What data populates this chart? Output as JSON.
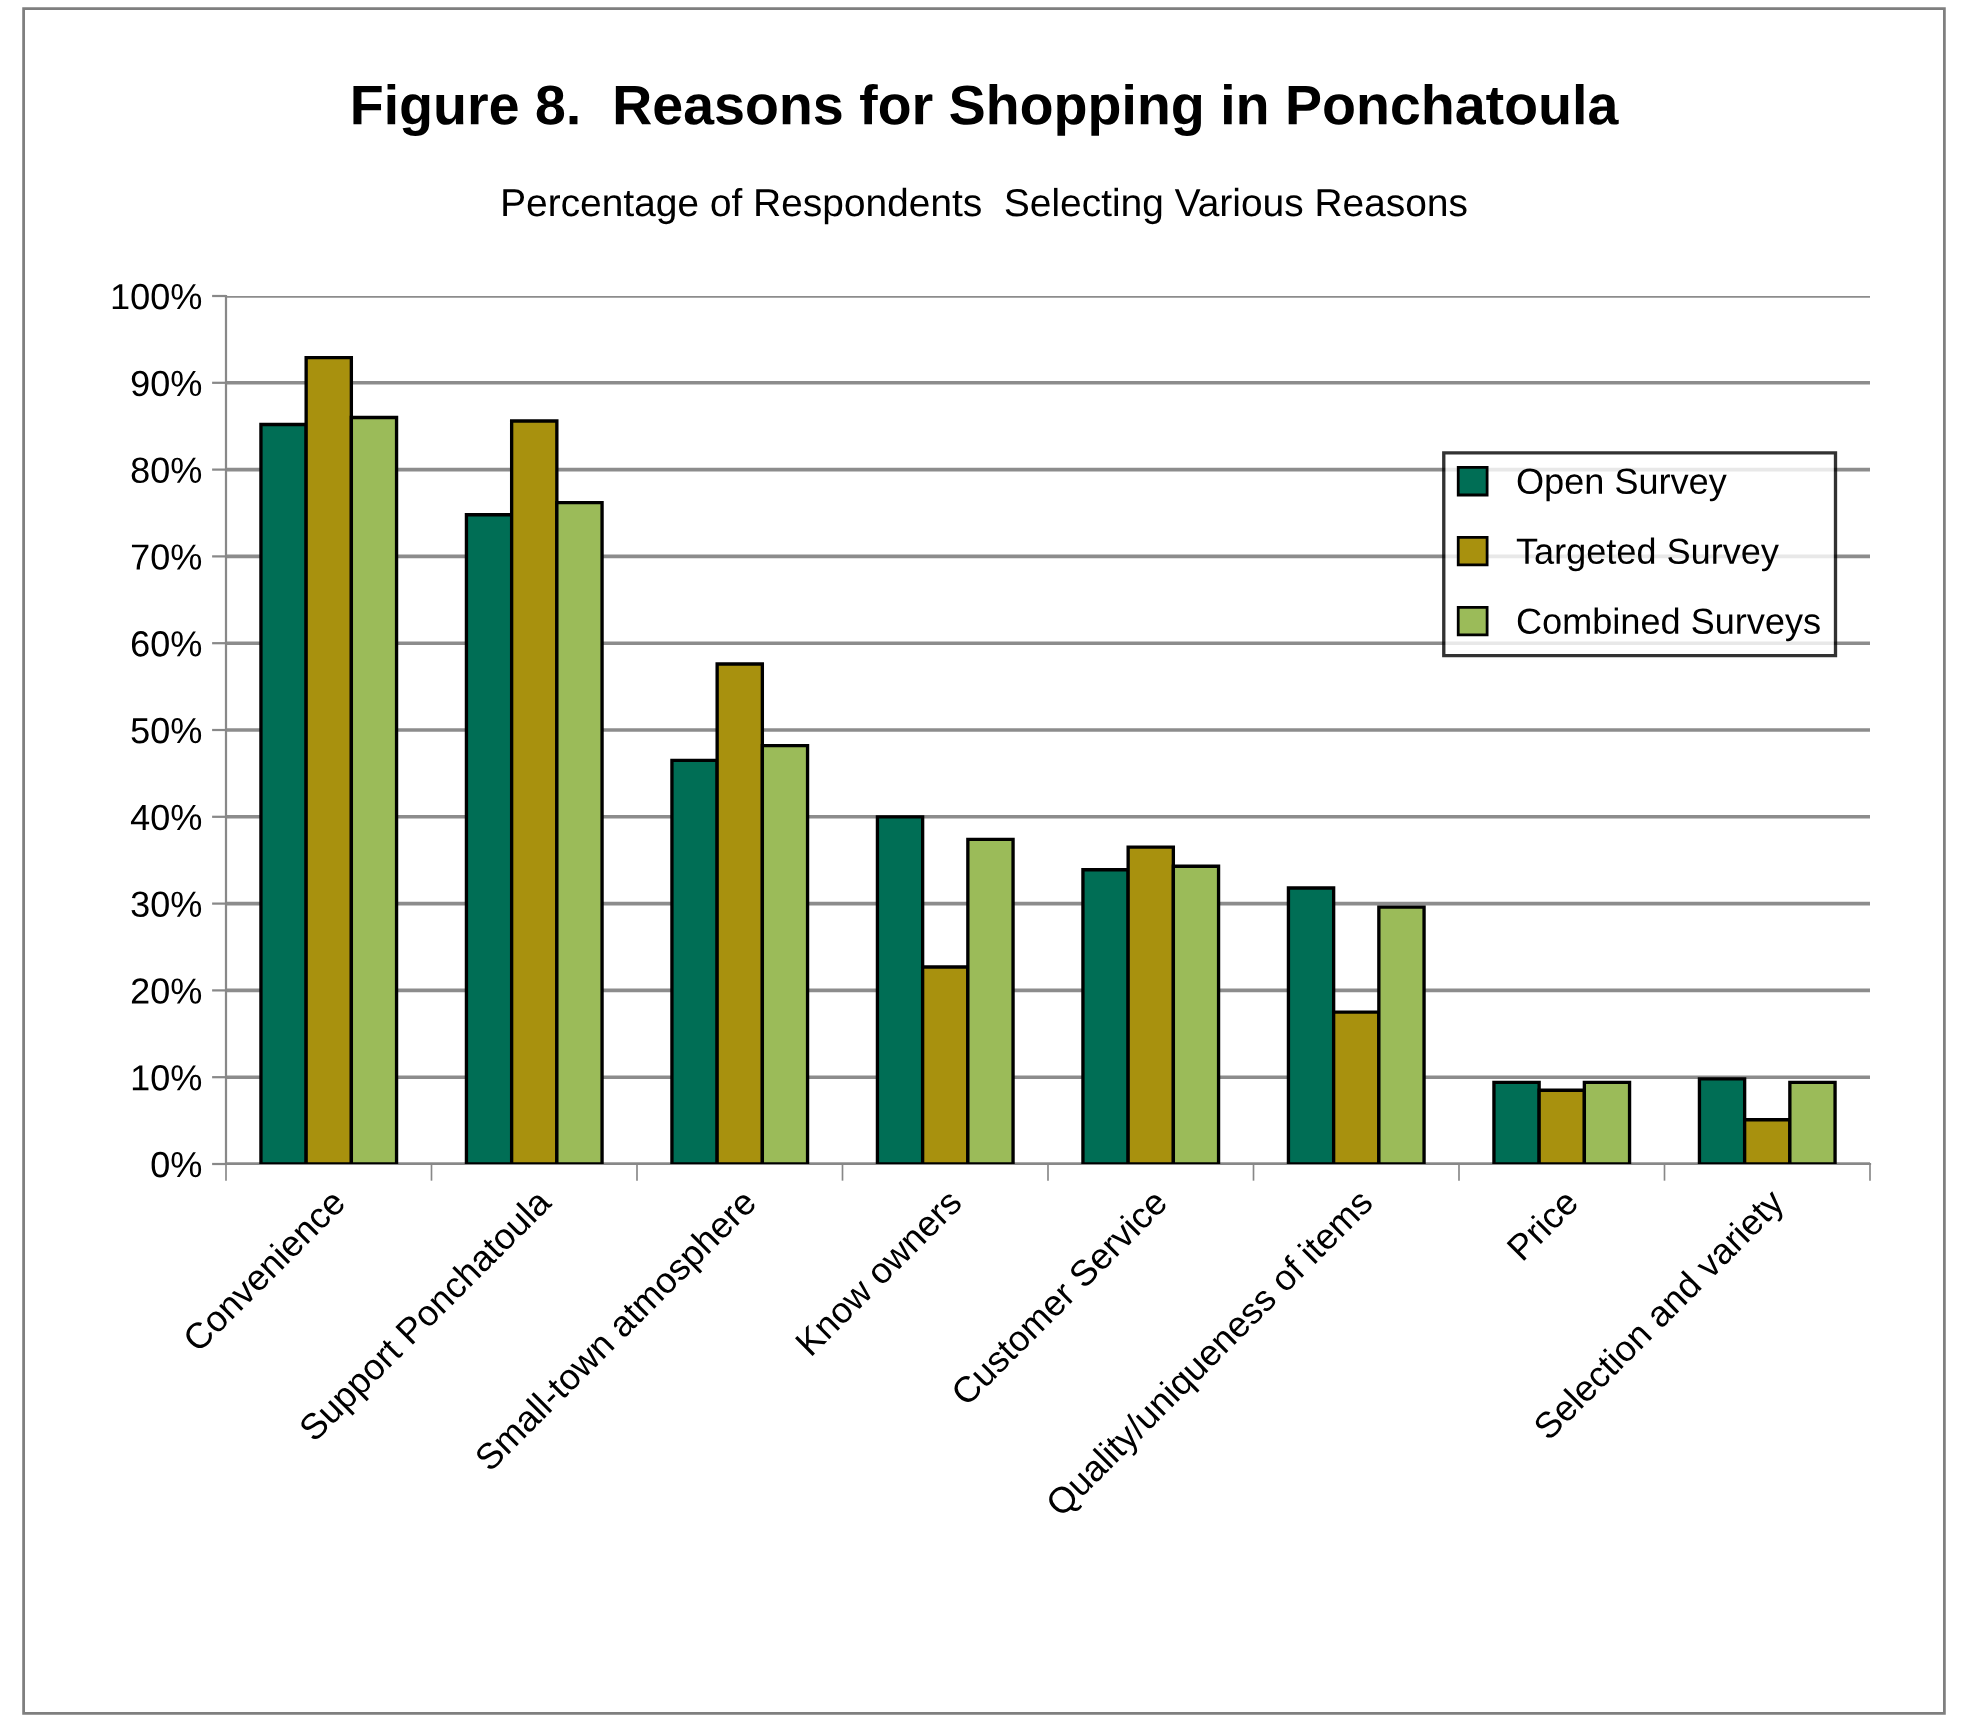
{
  "chart_data": {
    "type": "bar",
    "title": "Figure 8.  Reasons for Shopping in Ponchatoula",
    "subtitle": "Percentage of Respondents  Selecting Various Reasons",
    "categories": [
      "Convenience",
      "Support Ponchatoula",
      "Small-town atmosphere",
      "Know owners",
      "Customer Service",
      "Quality/uniqueness of items",
      "Price",
      "Selection and variety"
    ],
    "series": [
      {
        "name": "Open Survey",
        "color": "#006e55",
        "values": [
          85.2,
          74.8,
          46.5,
          40.0,
          33.9,
          31.8,
          9.4,
          9.8
        ]
      },
      {
        "name": "Targeted Survey",
        "color": "#a8910e",
        "values": [
          92.9,
          85.6,
          57.6,
          22.7,
          36.5,
          17.5,
          8.5,
          5.1
        ]
      },
      {
        "name": "Combined Surveys",
        "color": "#9bbb59",
        "values": [
          86.0,
          76.2,
          48.2,
          37.4,
          34.3,
          29.6,
          9.4,
          9.4
        ]
      }
    ],
    "ylim": [
      0,
      100
    ],
    "yticks": [
      {
        "value": 0,
        "label": "0%"
      },
      {
        "value": 10,
        "label": "10%"
      },
      {
        "value": 20,
        "label": "20%"
      },
      {
        "value": 30,
        "label": "30%"
      },
      {
        "value": 40,
        "label": "40%"
      },
      {
        "value": 50,
        "label": "50%"
      },
      {
        "value": 60,
        "label": "60%"
      },
      {
        "value": 70,
        "label": "70%"
      },
      {
        "value": 80,
        "label": "80%"
      },
      {
        "value": 90,
        "label": "90%"
      },
      {
        "value": 100,
        "label": "100%"
      }
    ],
    "grid": "y",
    "legend": "top right"
  }
}
